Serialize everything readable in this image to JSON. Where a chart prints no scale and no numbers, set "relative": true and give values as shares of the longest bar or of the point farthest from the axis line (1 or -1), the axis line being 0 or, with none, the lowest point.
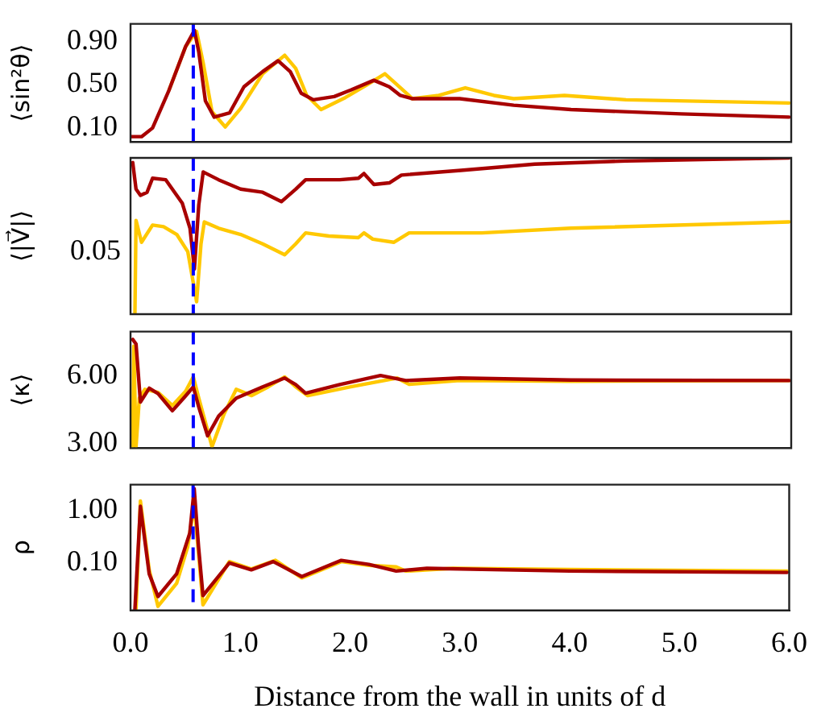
{
  "chart_data": [
    {
      "type": "line",
      "ylabel": "⟨sin²θ⟩",
      "xlim": [
        0,
        6
      ],
      "ylim": [
        -0.03,
        1.06
      ],
      "yticks": [
        {
          "value": 0.1,
          "label": "0.10"
        },
        {
          "value": 0.5,
          "label": "0.50"
        },
        {
          "value": 0.9,
          "label": "0.90"
        }
      ],
      "tick_labels": "y",
      "ref_lines": [
        {
          "axis": "x",
          "value": 0.57,
          "color": "#0000ff",
          "line_style": "dashed"
        }
      ],
      "series": [
        {
          "color": "#a80000",
          "x": [
            0,
            0.1,
            0.2,
            0.35,
            0.5,
            0.58,
            0.62,
            0.68,
            0.76,
            0.9,
            1.03,
            1.2,
            1.34,
            1.45,
            1.55,
            1.66,
            1.85,
            2.0,
            2.21,
            2.35,
            2.45,
            2.56,
            2.99,
            3.48,
            4.0,
            5.0,
            5.98
          ],
          "values": [
            0.02,
            0.02,
            0.1,
            0.45,
            0.85,
            1.0,
            0.8,
            0.35,
            0.2,
            0.24,
            0.48,
            0.62,
            0.72,
            0.62,
            0.42,
            0.36,
            0.39,
            0.45,
            0.54,
            0.48,
            0.4,
            0.37,
            0.37,
            0.31,
            0.27,
            0.23,
            0.2
          ]
        },
        {
          "color": "#ffc800",
          "x": [
            0.35,
            0.5,
            0.6,
            0.66,
            0.74,
            0.86,
            1.0,
            1.2,
            1.4,
            1.5,
            1.6,
            1.73,
            1.95,
            2.15,
            2.31,
            2.42,
            2.56,
            2.8,
            3.04,
            3.3,
            3.48,
            3.94,
            4.5,
            5.98
          ],
          "values": [
            0.45,
            0.85,
            0.99,
            0.7,
            0.25,
            0.11,
            0.28,
            0.6,
            0.77,
            0.65,
            0.4,
            0.27,
            0.38,
            0.5,
            0.6,
            0.5,
            0.37,
            0.4,
            0.47,
            0.4,
            0.37,
            0.4,
            0.36,
            0.33
          ]
        }
      ]
    },
    {
      "type": "line",
      "ylabel": "⟨|V⃗|⟩",
      "relative": true,
      "annotations": [
        "0.05"
      ],
      "xlim": [
        0,
        6
      ],
      "tick_labels": false,
      "ref_lines": [
        {
          "axis": "x",
          "value": 0.57,
          "color": "#0000ff",
          "line_style": "dashed"
        }
      ],
      "series": [
        {
          "color": "#a80000",
          "x": [
            0.02,
            0.05,
            0.09,
            0.15,
            0.2,
            0.32,
            0.47,
            0.54,
            0.58,
            0.62,
            0.66,
            0.8,
            1.0,
            1.2,
            1.37,
            1.5,
            1.59,
            1.9,
            2.07,
            2.12,
            2.21,
            2.35,
            2.46,
            3.0,
            3.67,
            4.5,
            5.98
          ],
          "values": [
            0.97,
            0.8,
            0.76,
            0.78,
            0.87,
            0.86,
            0.71,
            0.55,
            0.29,
            0.7,
            0.91,
            0.86,
            0.8,
            0.78,
            0.72,
            0.8,
            0.86,
            0.86,
            0.87,
            0.9,
            0.83,
            0.84,
            0.89,
            0.92,
            0.96,
            0.98,
            1.0
          ]
        },
        {
          "color": "#ffc800",
          "x": [
            0.04,
            0.05,
            0.1,
            0.2,
            0.3,
            0.42,
            0.52,
            0.6,
            0.64,
            0.67,
            0.8,
            1.0,
            1.2,
            1.4,
            1.5,
            1.59,
            1.8,
            2.07,
            2.12,
            2.2,
            2.39,
            2.53,
            3.19,
            4.0,
            5.98
          ],
          "values": [
            0.0,
            0.6,
            0.46,
            0.57,
            0.56,
            0.51,
            0.4,
            0.08,
            0.45,
            0.59,
            0.55,
            0.51,
            0.45,
            0.38,
            0.45,
            0.52,
            0.5,
            0.49,
            0.52,
            0.48,
            0.46,
            0.52,
            0.52,
            0.55,
            0.59
          ]
        }
      ]
    },
    {
      "type": "line",
      "ylabel": "⟨κ⟩",
      "xlim": [
        0,
        6
      ],
      "ylim": [
        2.78,
        7.95
      ],
      "yticks": [
        {
          "value": 3,
          "label": "3.00"
        },
        {
          "value": 6,
          "label": "6.00"
        }
      ],
      "tick_labels": "y",
      "ref_lines": [
        {
          "axis": "x",
          "value": 0.57,
          "color": "#0000ff",
          "line_style": "dashed"
        }
      ],
      "series": [
        {
          "color": "#a80000",
          "x": [
            0.02,
            0.05,
            0.09,
            0.17,
            0.25,
            0.38,
            0.5,
            0.57,
            0.62,
            0.7,
            0.8,
            0.96,
            1.2,
            1.4,
            1.5,
            1.59,
            1.9,
            2.27,
            2.5,
            2.99,
            4.0,
            5.98
          ],
          "values": [
            7.6,
            7.4,
            4.83,
            5.44,
            5.2,
            4.44,
            5.1,
            5.5,
            4.6,
            3.33,
            4.2,
            5.0,
            5.5,
            5.89,
            5.6,
            5.22,
            5.6,
            6.0,
            5.78,
            5.89,
            5.8,
            5.78
          ]
        },
        {
          "color": "#ffc800",
          "x": [
            0.02,
            0.03,
            0.05,
            0.08,
            0.13,
            0.25,
            0.38,
            0.5,
            0.57,
            0.62,
            0.74,
            0.85,
            0.96,
            1.1,
            1.25,
            1.4,
            1.5,
            1.61,
            2.0,
            2.42,
            2.53,
            2.99,
            4.0,
            5.98
          ],
          "values": [
            2.85,
            7.3,
            2.85,
            5.0,
            5.39,
            5.25,
            4.67,
            5.3,
            5.94,
            5.0,
            2.85,
            4.3,
            5.39,
            5.11,
            5.5,
            5.94,
            5.5,
            5.11,
            5.5,
            5.89,
            5.61,
            5.78,
            5.75,
            5.78
          ]
        }
      ]
    },
    {
      "type": "line",
      "ylabel": "ρ",
      "log": true,
      "xlabel": "Distance from the wall in units of d",
      "xlim": [
        0,
        6
      ],
      "xticks": [
        {
          "value": 0,
          "label": "0.0"
        },
        {
          "value": 1,
          "label": "1.0"
        },
        {
          "value": 2,
          "label": "2.0"
        },
        {
          "value": 3,
          "label": "3.0"
        },
        {
          "value": 4,
          "label": "4.0"
        },
        {
          "value": 5,
          "label": "5.0"
        },
        {
          "value": 6,
          "label": "6.0"
        }
      ],
      "ylim": [
        0.0126,
        3.07
      ],
      "yticks": [
        {
          "value": 0.1,
          "label": "0.10"
        },
        {
          "value": 1,
          "label": "1.00"
        }
      ],
      "ref_lines": [
        {
          "axis": "x",
          "value": 0.57,
          "color": "#0000ff",
          "line_style": "dashed"
        }
      ],
      "series": [
        {
          "color": "#a80000",
          "x": [
            0.04,
            0.09,
            0.17,
            0.25,
            0.42,
            0.54,
            0.58,
            0.62,
            0.66,
            0.9,
            1.1,
            1.3,
            1.56,
            1.92,
            2.17,
            2.42,
            2.7,
            4.0,
            5.98
          ],
          "values": [
            0.013,
            1.19,
            0.062,
            0.023,
            0.062,
            0.37,
            2.57,
            0.2,
            0.024,
            0.1,
            0.074,
            0.106,
            0.055,
            0.112,
            0.094,
            0.07,
            0.079,
            0.07,
            0.066
          ]
        },
        {
          "color": "#ffc800",
          "x": [
            0.05,
            0.09,
            0.17,
            0.25,
            0.42,
            0.52,
            0.58,
            0.62,
            0.66,
            0.9,
            1.1,
            1.32,
            1.56,
            1.92,
            2.17,
            2.42,
            2.51,
            2.94,
            4.0,
            5.98
          ],
          "values": [
            0.013,
            1.5,
            0.074,
            0.015,
            0.041,
            0.2,
            1.27,
            0.15,
            0.016,
            0.106,
            0.077,
            0.112,
            0.052,
            0.106,
            0.09,
            0.084,
            0.07,
            0.079,
            0.075,
            0.07
          ]
        }
      ]
    }
  ]
}
